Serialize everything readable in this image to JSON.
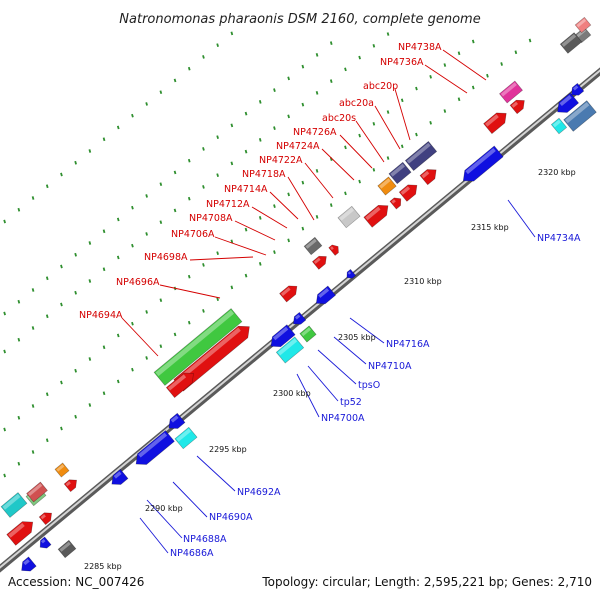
{
  "title": "Natronomonas pharaonis DSM 2160, complete genome",
  "footer": {
    "accession": "Accession: NC_007426",
    "summary": "Topology: circular; Length: 2,595,221 bp; Genes: 2,710"
  },
  "colors": {
    "forward_label": "#d40000",
    "reverse_label": "#1a1ad8",
    "backbone": "#7f7f7f",
    "tick_dots": "#2f8f2f"
  },
  "tick_labels": [
    "2285 kbp",
    "2290 kbp",
    "2295 kbp",
    "2300 kbp",
    "2305 kbp",
    "2310 kbp",
    "2315 kbp",
    "2320 kbp"
  ],
  "forward_genes": [
    "NP4694A",
    "NP4696A",
    "NP4698A",
    "NP4706A",
    "NP4708A",
    "NP4712A",
    "NP4714A",
    "NP4718A",
    "NP4722A",
    "NP4724A",
    "NP4726A",
    "abc20s",
    "abc20a",
    "abc20p",
    "NP4736A",
    "NP4738A"
  ],
  "reverse_genes": [
    "NP4686A",
    "NP4688A",
    "NP4690A",
    "NP4692A",
    "NP4700A",
    "tp52",
    "tpsO",
    "NP4710A",
    "NP4716A",
    "NP4734A"
  ]
}
